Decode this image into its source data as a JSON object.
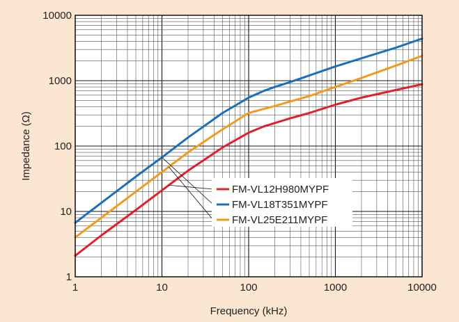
{
  "chart_data": {
    "type": "line",
    "title": "",
    "xlabel": "Frequency (kHz)",
    "ylabel": "Impedance (Ω)",
    "x_scale": "log",
    "y_scale": "log",
    "xlim": [
      1,
      10000
    ],
    "ylim": [
      1,
      10000
    ],
    "x_ticks": [
      "1",
      "10",
      "100",
      "1000",
      "10000"
    ],
    "y_ticks": [
      "1",
      "10",
      "100",
      "1000",
      "10000"
    ],
    "grid": true,
    "legend_position": "center-right",
    "series": [
      {
        "name": "FM-VL12H980MYPF",
        "color": "#e0202a",
        "points": [
          [
            1,
            2.1
          ],
          [
            2,
            4.3
          ],
          [
            5,
            10.5
          ],
          [
            10,
            21
          ],
          [
            20,
            42
          ],
          [
            50,
            95
          ],
          [
            100,
            160
          ],
          [
            150,
            200
          ],
          [
            200,
            225
          ],
          [
            300,
            265
          ],
          [
            500,
            320
          ],
          [
            1000,
            430
          ],
          [
            2000,
            550
          ],
          [
            5000,
            720
          ],
          [
            10000,
            880
          ]
        ]
      },
      {
        "name": "FM-VL18T351MYPF",
        "color": "#1a6fb8",
        "points": [
          [
            1,
            6.7
          ],
          [
            2,
            13.5
          ],
          [
            5,
            34
          ],
          [
            10,
            67
          ],
          [
            20,
            135
          ],
          [
            50,
            320
          ],
          [
            100,
            550
          ],
          [
            150,
            700
          ],
          [
            200,
            800
          ],
          [
            300,
            950
          ],
          [
            500,
            1200
          ],
          [
            1000,
            1650
          ],
          [
            2000,
            2200
          ],
          [
            5000,
            3200
          ],
          [
            10000,
            4400
          ]
        ]
      },
      {
        "name": "FM-VL25E211MYPF",
        "color": "#f39a1e",
        "points": [
          [
            1,
            4
          ],
          [
            2,
            8
          ],
          [
            5,
            20
          ],
          [
            10,
            40
          ],
          [
            20,
            80
          ],
          [
            50,
            180
          ],
          [
            100,
            320
          ],
          [
            150,
            370
          ],
          [
            200,
            410
          ],
          [
            300,
            480
          ],
          [
            500,
            580
          ],
          [
            1000,
            800
          ],
          [
            2000,
            1100
          ],
          [
            5000,
            1700
          ],
          [
            10000,
            2400
          ]
        ]
      }
    ]
  }
}
